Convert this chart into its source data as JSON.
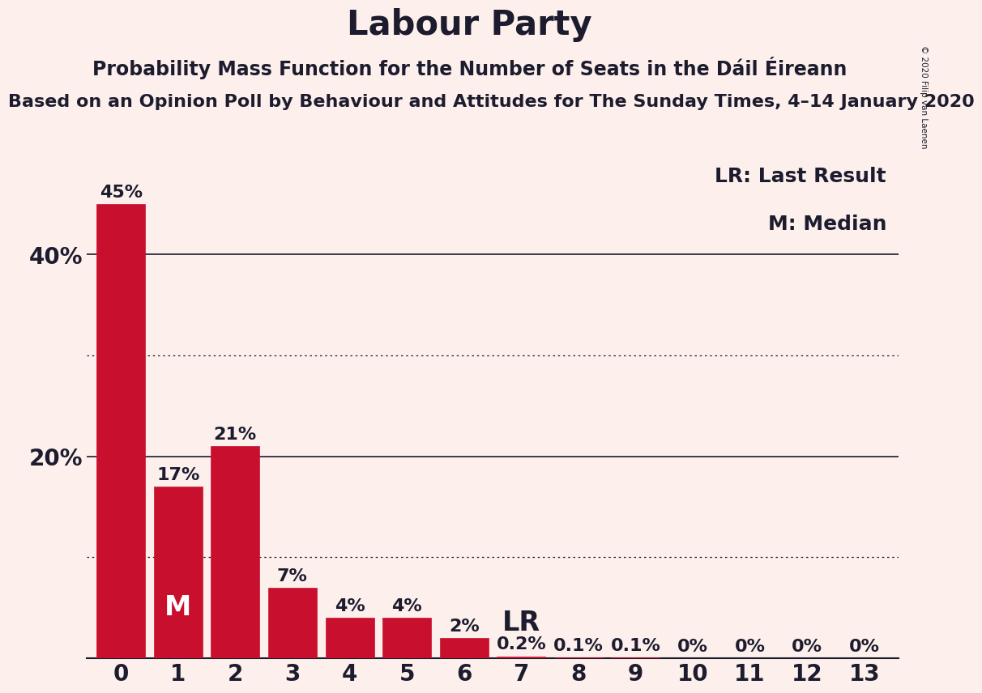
{
  "title": "Labour Party",
  "subtitle": "Probability Mass Function for the Number of Seats in the Dáil Éireann",
  "subtitle2": "Based on an Opinion Poll by Behaviour and Attitudes for The Sunday Times, 4–14 January 2020",
  "copyright": "© 2020 Filip van Laenen",
  "categories": [
    0,
    1,
    2,
    3,
    4,
    5,
    6,
    7,
    8,
    9,
    10,
    11,
    12,
    13
  ],
  "values": [
    45,
    17,
    21,
    7,
    4,
    4,
    2,
    0.2,
    0.1,
    0.1,
    0,
    0,
    0,
    0
  ],
  "bar_color": "#c8102e",
  "background_color": "#fdf0ec",
  "text_color": "#1c1c2e",
  "label_texts": [
    "45%",
    "17%",
    "21%",
    "7%",
    "4%",
    "4%",
    "2%",
    "0.2%",
    "0.1%",
    "0.1%",
    "0%",
    "0%",
    "0%",
    "0%"
  ],
  "median_bar_idx": 1,
  "median_label": "M",
  "lr_bar_idx": 7,
  "lr_label": "LR",
  "legend_lr": "LR: Last Result",
  "legend_m": "M: Median",
  "ylim": [
    0,
    50
  ],
  "yticks": [
    20,
    40
  ],
  "ytick_labels": [
    "20%",
    "40%"
  ],
  "solid_gridlines": [
    20,
    40
  ],
  "dotted_gridlines": [
    10,
    30
  ],
  "title_fontsize": 30,
  "subtitle_fontsize": 17,
  "subtitle2_fontsize": 16,
  "bar_label_fontsize": 16,
  "axis_tick_fontsize": 20,
  "legend_fontsize": 18,
  "median_fontsize": 24,
  "lr_fontsize": 24
}
